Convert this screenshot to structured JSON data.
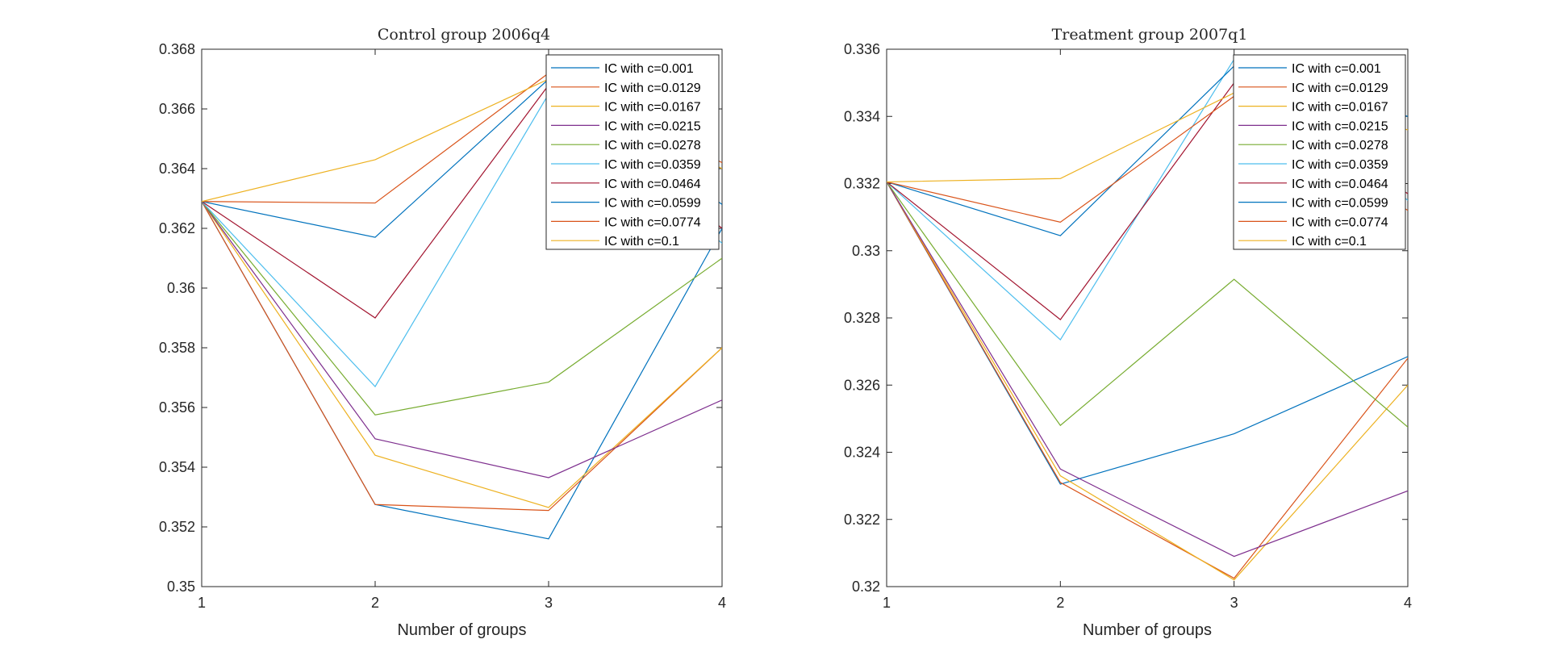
{
  "chart_data": [
    {
      "type": "line",
      "title": "Control group 2006q4",
      "xlabel": "Number of groups",
      "ylabel": "",
      "x": [
        1,
        2,
        3,
        4
      ],
      "xlim": [
        1,
        4
      ],
      "ylim": [
        0.35,
        0.368
      ],
      "xticks": [
        "1",
        "2",
        "3",
        "4"
      ],
      "yticks": [
        "0.35",
        "0.352",
        "0.354",
        "0.356",
        "0.358",
        "0.36",
        "0.362",
        "0.364",
        "0.366",
        "0.368"
      ],
      "legend_position": "top-right",
      "grid": false,
      "series": [
        {
          "name": "IC with c=0.001",
          "color": "#0072BD",
          "values": [
            0.3629,
            0.35275,
            0.3516,
            0.362
          ]
        },
        {
          "name": "IC with c=0.0129",
          "color": "#D95319",
          "values": [
            0.3629,
            0.35275,
            0.35255,
            0.358
          ]
        },
        {
          "name": "IC with c=0.0167",
          "color": "#EDB120",
          "values": [
            0.3629,
            0.3544,
            0.35265,
            0.358
          ]
        },
        {
          "name": "IC with c=0.0215",
          "color": "#7E2F8E",
          "values": [
            0.3629,
            0.35495,
            0.35365,
            0.35625
          ]
        },
        {
          "name": "IC with c=0.0278",
          "color": "#77AC30",
          "values": [
            0.3629,
            0.35575,
            0.35685,
            0.361
          ]
        },
        {
          "name": "IC with c=0.0359",
          "color": "#4DBEEE",
          "values": [
            0.3629,
            0.3567,
            0.3665,
            0.3615
          ]
        },
        {
          "name": "IC with c=0.0464",
          "color": "#A2142F",
          "values": [
            0.3629,
            0.359,
            0.3668,
            0.362
          ]
        },
        {
          "name": "IC with c=0.0599",
          "color": "#0072BD",
          "values": [
            0.3629,
            0.3617,
            0.367,
            0.3628
          ]
        },
        {
          "name": "IC with c=0.0774",
          "color": "#D95319",
          "values": [
            0.3629,
            0.36285,
            0.3672,
            0.3642
          ]
        },
        {
          "name": "IC with c=0.1",
          "color": "#EDB120",
          "values": [
            0.3629,
            0.3643,
            0.367,
            0.364
          ]
        }
      ]
    },
    {
      "type": "line",
      "title": "Treatment group 2007q1",
      "xlabel": "Number of groups",
      "ylabel": "",
      "x": [
        1,
        2,
        3,
        4
      ],
      "xlim": [
        1,
        4
      ],
      "ylim": [
        0.32,
        0.336
      ],
      "xticks": [
        "1",
        "2",
        "3",
        "4"
      ],
      "yticks": [
        "0.32",
        "0.322",
        "0.324",
        "0.326",
        "0.328",
        "0.33",
        "0.332",
        "0.334",
        "0.336"
      ],
      "legend_position": "top-right",
      "grid": false,
      "series": [
        {
          "name": "IC with c=0.001",
          "color": "#0072BD",
          "values": [
            0.33205,
            0.32305,
            0.32455,
            0.32685
          ]
        },
        {
          "name": "IC with c=0.0129",
          "color": "#D95319",
          "values": [
            0.33205,
            0.3231,
            0.32025,
            0.3268
          ]
        },
        {
          "name": "IC with c=0.0167",
          "color": "#EDB120",
          "values": [
            0.33205,
            0.3233,
            0.3202,
            0.326
          ]
        },
        {
          "name": "IC with c=0.0215",
          "color": "#7E2F8E",
          "values": [
            0.33205,
            0.3235,
            0.3209,
            0.32285
          ]
        },
        {
          "name": "IC with c=0.0278",
          "color": "#77AC30",
          "values": [
            0.33205,
            0.3248,
            0.32915,
            0.32475
          ]
        },
        {
          "name": "IC with c=0.0359",
          "color": "#4DBEEE",
          "values": [
            0.33205,
            0.32735,
            0.3357,
            0.3315
          ]
        },
        {
          "name": "IC with c=0.0464",
          "color": "#A2142F",
          "values": [
            0.33205,
            0.32795,
            0.335,
            0.3317
          ]
        },
        {
          "name": "IC with c=0.0599",
          "color": "#0072BD",
          "values": [
            0.33205,
            0.33045,
            0.3355,
            0.334
          ]
        },
        {
          "name": "IC with c=0.0774",
          "color": "#D95319",
          "values": [
            0.33205,
            0.33085,
            0.3346,
            0.3312
          ]
        },
        {
          "name": "IC with c=0.1",
          "color": "#EDB120",
          "values": [
            0.33205,
            0.33215,
            0.3347,
            0.3336
          ]
        }
      ]
    }
  ]
}
